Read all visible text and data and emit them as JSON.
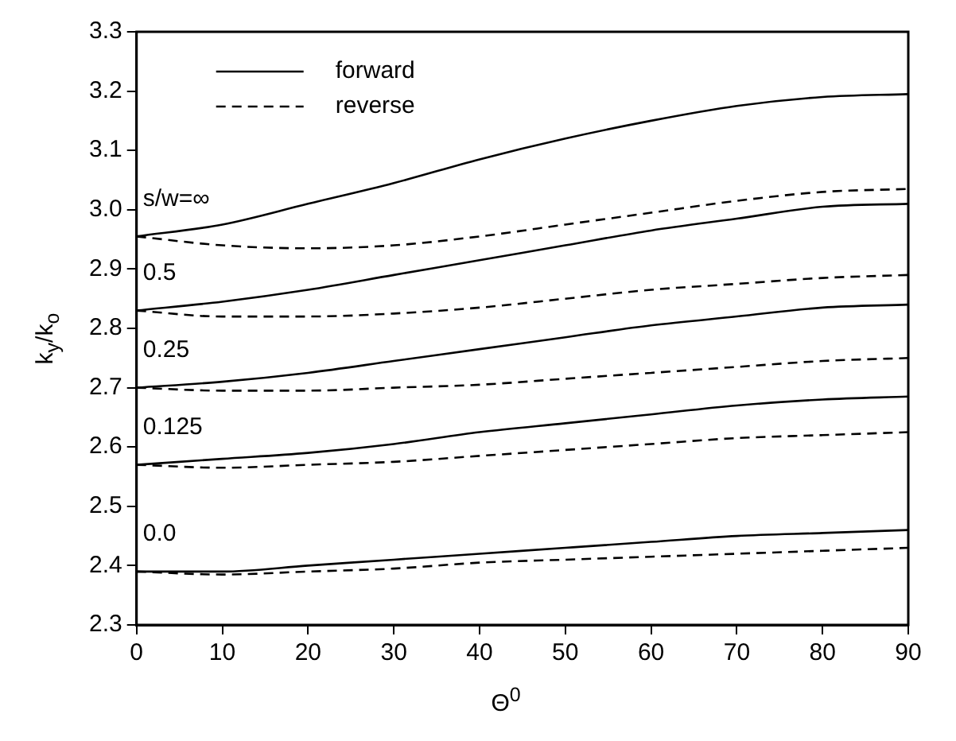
{
  "chart_data": {
    "type": "line",
    "xlabel": "Θ$^{0}$",
    "ylabel": "k$_{y}$/k$_{o}$",
    "x": [
      0,
      10,
      20,
      30,
      40,
      50,
      60,
      70,
      80,
      90
    ],
    "xlim": [
      0,
      90
    ],
    "xticks": [
      0,
      10,
      20,
      30,
      40,
      50,
      60,
      70,
      80,
      90
    ],
    "ylim": [
      2.3,
      3.3
    ],
    "yticks": [
      2.3,
      2.4,
      2.5,
      2.6,
      2.7,
      2.8,
      2.9,
      {
        "value": 3,
        "label": "3.0"
      },
      3.1,
      3.2,
      3.3
    ],
    "grid": false,
    "legend": "top left",
    "marker": "none",
    "series": [
      {
        "name": "forward",
        "color": "#000000",
        "line_style": "solid",
        "values": [
          2.955,
          2.975,
          3.01,
          3.045,
          3.085,
          3.12,
          3.15,
          3.175,
          3.19,
          3.195
        ]
      },
      {
        "name": "reverse",
        "color": "#000000",
        "line_style": "dashed",
        "values": [
          2.955,
          2.94,
          2.935,
          2.94,
          2.955,
          2.975,
          2.995,
          3.015,
          3.03,
          3.035
        ]
      },
      {
        "color": "#000000",
        "line_style": "solid",
        "values": [
          2.83,
          2.845,
          2.865,
          2.89,
          2.915,
          2.94,
          2.965,
          2.985,
          3.005,
          3.01
        ]
      },
      {
        "color": "#000000",
        "line_style": "dashed",
        "values": [
          2.83,
          2.82,
          2.82,
          2.825,
          2.835,
          2.85,
          2.865,
          2.875,
          2.885,
          2.89
        ]
      },
      {
        "color": "#000000",
        "line_style": "solid",
        "values": [
          2.7,
          2.71,
          2.725,
          2.745,
          2.765,
          2.785,
          2.805,
          2.82,
          2.835,
          2.84
        ]
      },
      {
        "color": "#000000",
        "line_style": "dashed",
        "values": [
          2.7,
          2.695,
          2.695,
          2.7,
          2.705,
          2.715,
          2.725,
          2.735,
          2.745,
          2.75
        ]
      },
      {
        "color": "#000000",
        "line_style": "solid",
        "values": [
          2.57,
          2.58,
          2.59,
          2.605,
          2.625,
          2.64,
          2.655,
          2.67,
          2.68,
          2.685
        ]
      },
      {
        "color": "#000000",
        "line_style": "dashed",
        "values": [
          2.57,
          2.565,
          2.57,
          2.575,
          2.585,
          2.595,
          2.605,
          2.615,
          2.62,
          2.625
        ]
      },
      {
        "color": "#000000",
        "line_style": "solid",
        "values": [
          2.39,
          2.39,
          2.4,
          2.41,
          2.42,
          2.43,
          2.44,
          2.45,
          2.455,
          2.46
        ]
      },
      {
        "color": "#000000",
        "line_style": "dashed",
        "values": [
          2.39,
          2.385,
          2.39,
          2.395,
          2.405,
          2.41,
          2.415,
          2.42,
          2.425,
          2.43
        ]
      }
    ],
    "annotations": [
      "s/w=∞",
      "0.5",
      "0.25",
      "0.125",
      "0.0"
    ]
  }
}
